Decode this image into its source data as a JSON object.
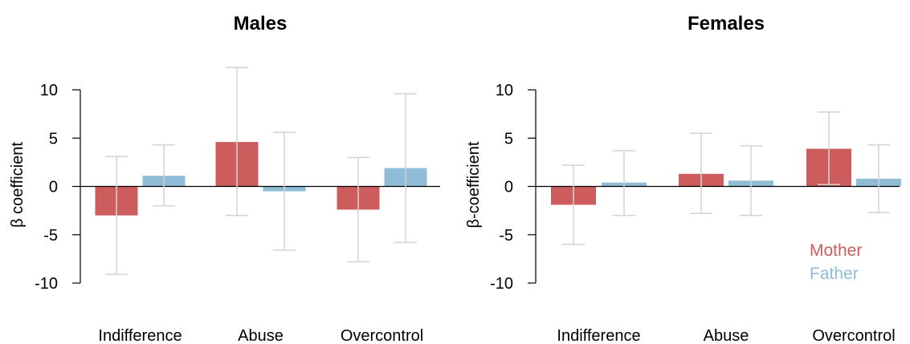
{
  "chart_data": [
    {
      "type": "bar",
      "title": "Males",
      "ylabel": "β coefficient",
      "xlabel": "",
      "ylim": [
        -10,
        10
      ],
      "yticks": [
        -10,
        -5,
        0,
        5,
        10
      ],
      "grid": false,
      "categories": [
        "Indifference",
        "Abuse",
        "Overcontrol"
      ],
      "series": [
        {
          "name": "Mother",
          "color": "#cd5c5c",
          "values": [
            -3.0,
            4.6,
            -2.4
          ],
          "ci_low": [
            -9.1,
            -3.0,
            -7.8
          ],
          "ci_high": [
            3.1,
            12.3,
            3.0
          ]
        },
        {
          "name": "Father",
          "color": "#8fbcd6",
          "values": [
            1.1,
            -0.5,
            1.9
          ],
          "ci_low": [
            -2.0,
            -6.6,
            -5.8
          ],
          "ci_high": [
            4.3,
            5.6,
            9.6
          ]
        }
      ],
      "legend": null
    },
    {
      "type": "bar",
      "title": "Females",
      "ylabel": "β-coefficient",
      "xlabel": "",
      "ylim": [
        -10,
        10
      ],
      "yticks": [
        -10,
        -5,
        0,
        5,
        10
      ],
      "grid": false,
      "categories": [
        "Indifference",
        "Abuse",
        "Overcontrol"
      ],
      "series": [
        {
          "name": "Mother",
          "color": "#cd5c5c",
          "values": [
            -1.9,
            1.3,
            3.9
          ],
          "ci_low": [
            -6.0,
            -2.8,
            0.2
          ],
          "ci_high": [
            2.2,
            5.5,
            7.7
          ]
        },
        {
          "name": "Father",
          "color": "#8fbcd6",
          "values": [
            0.4,
            0.6,
            0.8
          ],
          "ci_low": [
            -3.0,
            -3.0,
            -2.7
          ],
          "ci_high": [
            3.7,
            4.2,
            4.3
          ]
        }
      ],
      "legend": {
        "placement": "bottom-right",
        "entries": [
          "Mother",
          "Father"
        ]
      }
    }
  ]
}
